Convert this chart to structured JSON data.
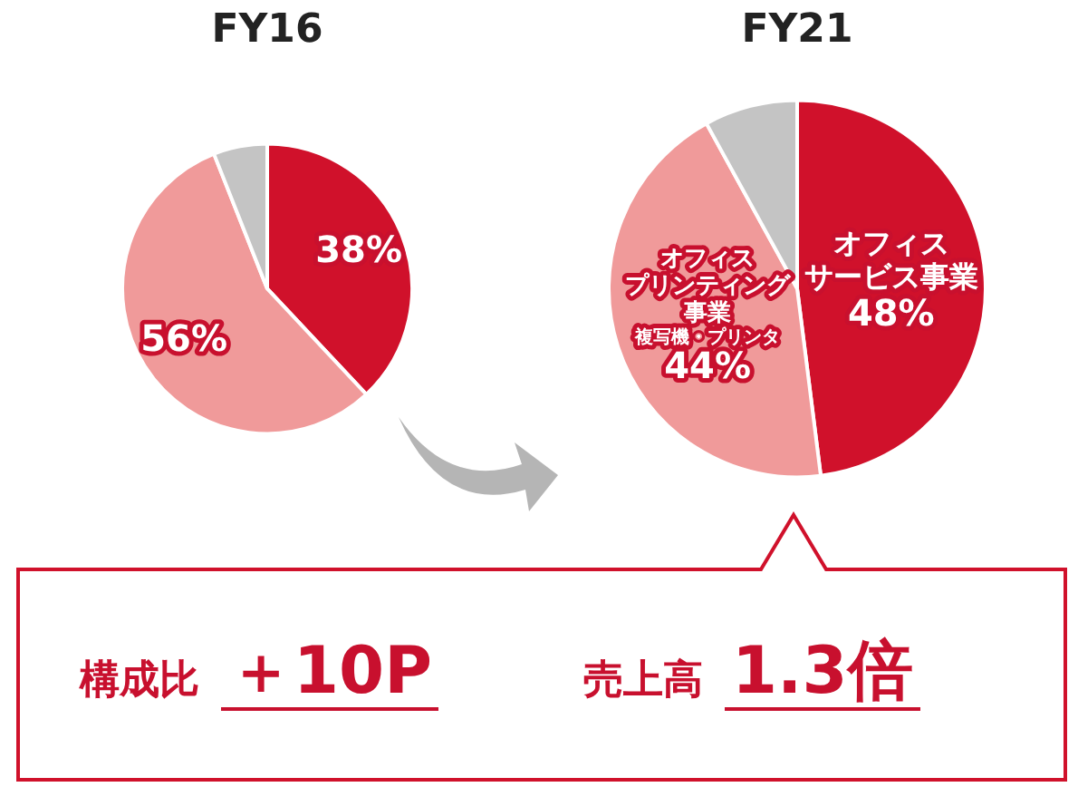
{
  "chart_data": [
    {
      "type": "pie",
      "title": "FY16",
      "categories": [
        null,
        null,
        null
      ],
      "values": [
        38,
        56,
        6
      ],
      "colors": [
        "#d0112b",
        "#f09a9a",
        "#c4c4c4"
      ],
      "value_labels": [
        "38%",
        "56%",
        null
      ],
      "legend": false
    },
    {
      "type": "pie",
      "title": "FY21",
      "categories": [
        "オフィスサービス事業",
        "オフィスプリンティング事業",
        null
      ],
      "values": [
        48,
        44,
        8
      ],
      "colors": [
        "#d0112b",
        "#f09a9a",
        "#c4c4c4"
      ],
      "value_labels": [
        "48%",
        "44%",
        null
      ],
      "legend": false,
      "annotations": [
        {
          "text": "複写機・プリンタ",
          "x": "オフィスプリンティング事業"
        },
        "構成比 ＋10P",
        "売上高 1.3倍"
      ]
    }
  ]
}
